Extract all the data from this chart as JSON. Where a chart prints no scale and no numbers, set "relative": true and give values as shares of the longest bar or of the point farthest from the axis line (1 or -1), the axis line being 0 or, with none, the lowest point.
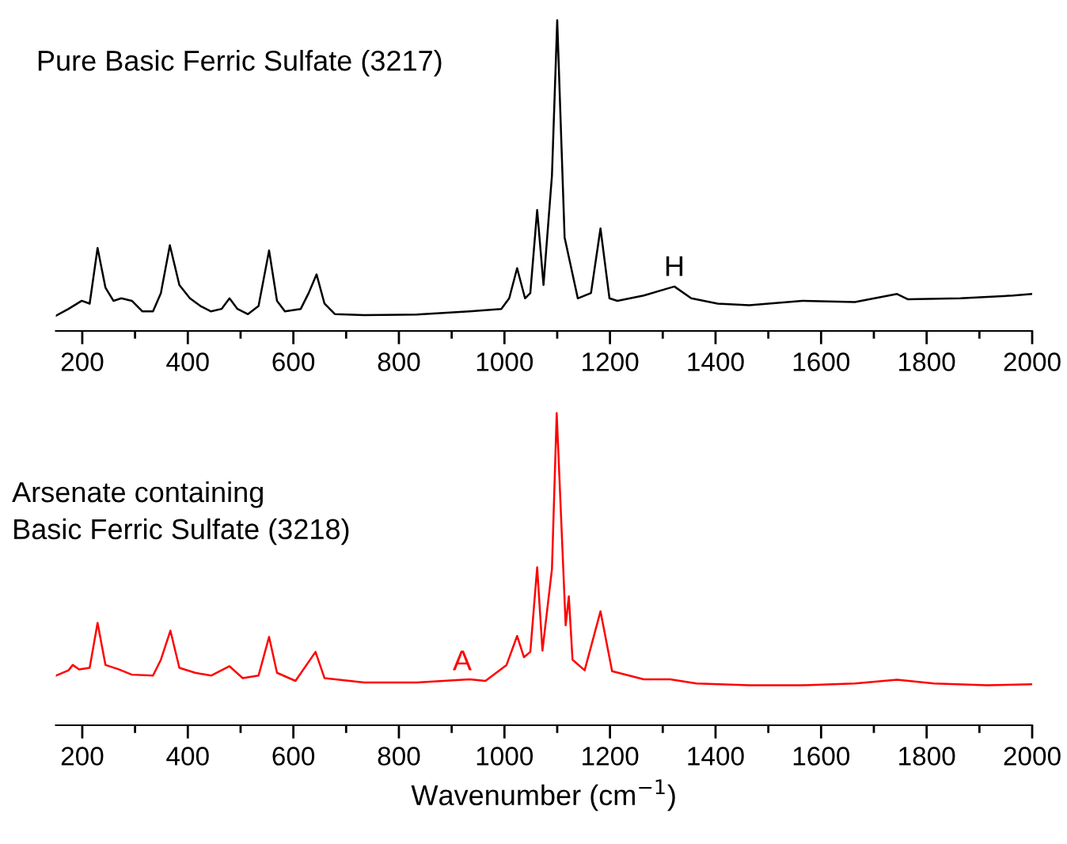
{
  "chart_data": [
    {
      "type": "line",
      "relative": true,
      "title": "Pure Basic Ferric Sulfate (3217)",
      "xlim": [
        150,
        2000
      ],
      "xticks": [
        200,
        {
          "value": 300,
          "label": null
        },
        400,
        {
          "value": 500,
          "label": null
        },
        600,
        {
          "value": 700,
          "label": null
        },
        800,
        {
          "value": 900,
          "label": null
        },
        1000,
        {
          "value": 1100,
          "label": null
        },
        1200,
        {
          "value": 1300,
          "label": null
        },
        1400,
        {
          "value": 1500,
          "label": null
        },
        1600,
        {
          "value": 1700,
          "label": null
        },
        1800,
        {
          "value": 1900,
          "label": null
        },
        2000
      ],
      "annotations": [
        {
          "text": "H",
          "x": 1322,
          "y": 0.143
        }
      ],
      "series": [
        {
          "color": "#000000",
          "x": [
            150,
            174,
            199,
            214,
            229,
            244,
            259,
            274,
            294,
            314,
            334,
            349,
            366,
            384,
            404,
            424,
            444,
            464,
            479,
            494,
            514,
            534,
            554,
            569,
            584,
            614,
            629,
            644,
            659,
            679,
            734,
            834,
            934,
            994,
            1009,
            1024,
            1039,
            1049,
            1062,
            1074,
            1090,
            1100,
            1114,
            1139,
            1164,
            1182,
            1199,
            1214,
            1264,
            1304,
            1322,
            1354,
            1404,
            1464,
            1564,
            1664,
            1744,
            1764,
            1864,
            1964,
            2000
          ],
          "values": [
            0.049,
            0.071,
            0.097,
            0.088,
            0.267,
            0.139,
            0.097,
            0.105,
            0.097,
            0.063,
            0.063,
            0.122,
            0.276,
            0.148,
            0.105,
            0.08,
            0.063,
            0.071,
            0.105,
            0.071,
            0.054,
            0.08,
            0.259,
            0.097,
            0.063,
            0.071,
            0.122,
            0.182,
            0.088,
            0.054,
            0.051,
            0.053,
            0.063,
            0.071,
            0.105,
            0.202,
            0.105,
            0.122,
            0.389,
            0.148,
            0.5,
            1.0,
            0.301,
            0.105,
            0.122,
            0.33,
            0.105,
            0.097,
            0.114,
            0.134,
            0.143,
            0.105,
            0.088,
            0.083,
            0.097,
            0.093,
            0.119,
            0.102,
            0.105,
            0.114,
            0.119
          ]
        }
      ]
    },
    {
      "type": "line",
      "relative": true,
      "title": "Arsenate containing\nBasic Ferric Sulfate (3218)",
      "xlabel": "Wavenumber (cm$^{−1}$)",
      "xlim": [
        150,
        2000
      ],
      "xticks": [
        200,
        {
          "value": 300,
          "label": null
        },
        400,
        {
          "value": 500,
          "label": null
        },
        600,
        {
          "value": 700,
          "label": null
        },
        800,
        {
          "value": 900,
          "label": null
        },
        1000,
        {
          "value": 1100,
          "label": null
        },
        1200,
        {
          "value": 1300,
          "label": null
        },
        1400,
        {
          "value": 1500,
          "label": null
        },
        1600,
        {
          "value": 1700,
          "label": null
        },
        1800,
        {
          "value": 1900,
          "label": null
        },
        2000
      ],
      "annotations": [
        {
          "text": "A",
          "x": 920,
          "y": 0.142
        }
      ],
      "series": [
        {
          "color": "#ff0000",
          "x": [
            150,
            174,
            182,
            194,
            214,
            229,
            244,
            269,
            294,
            334,
            349,
            367,
            384,
            414,
            444,
            479,
            504,
            534,
            554,
            569,
            604,
            642,
            659,
            734,
            834,
            934,
            964,
            1004,
            1024,
            1037,
            1049,
            1062,
            1072,
            1090,
            1099,
            1116,
            1122,
            1129,
            1152,
            1182,
            1204,
            1264,
            1314,
            1364,
            1464,
            1564,
            1664,
            1744,
            1814,
            1914,
            2000
          ],
          "values": [
            0.159,
            0.176,
            0.193,
            0.179,
            0.184,
            0.328,
            0.193,
            0.179,
            0.162,
            0.159,
            0.21,
            0.303,
            0.184,
            0.168,
            0.159,
            0.189,
            0.151,
            0.159,
            0.283,
            0.168,
            0.142,
            0.235,
            0.151,
            0.137,
            0.137,
            0.147,
            0.142,
            0.193,
            0.286,
            0.218,
            0.235,
            0.506,
            0.239,
            0.5,
            1.0,
            0.32,
            0.413,
            0.21,
            0.176,
            0.365,
            0.173,
            0.147,
            0.147,
            0.134,
            0.128,
            0.128,
            0.134,
            0.146,
            0.134,
            0.128,
            0.131
          ]
        }
      ]
    }
  ]
}
